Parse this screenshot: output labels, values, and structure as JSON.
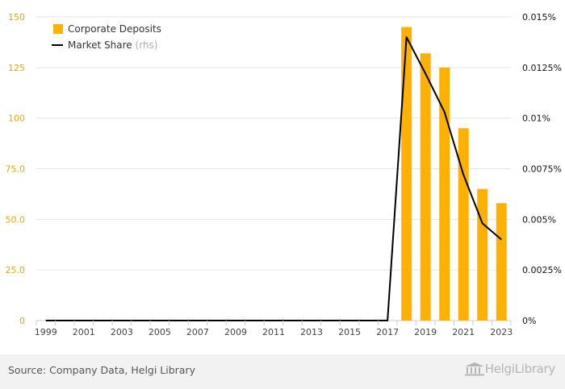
{
  "chart_data": {
    "type": "bar+line",
    "categories": [
      "1999",
      "2000",
      "2001",
      "2002",
      "2003",
      "2004",
      "2005",
      "2006",
      "2007",
      "2008",
      "2009",
      "2010",
      "2011",
      "2012",
      "2013",
      "2014",
      "2015",
      "2016",
      "2017",
      "2018",
      "2019",
      "2020",
      "2021",
      "2022",
      "2023"
    ],
    "x_tick_labels": [
      "1999",
      "2001",
      "2003",
      "2005",
      "2007",
      "2009",
      "2011",
      "2013",
      "2015",
      "2017",
      "2019",
      "2021",
      "2023"
    ],
    "series": [
      {
        "name": "Corporate Deposits",
        "type": "bar",
        "axis": "left",
        "color": "#ffb000",
        "values": [
          0,
          0,
          0,
          0,
          0,
          0,
          0,
          0,
          0,
          0,
          0,
          0,
          0,
          0,
          0,
          0,
          0,
          0,
          0,
          145,
          132,
          125,
          95,
          65,
          58
        ]
      },
      {
        "name": "Market Share",
        "legend_suffix": "(rhs)",
        "type": "line",
        "axis": "right",
        "color": "#000000",
        "values": [
          0,
          0,
          0,
          0,
          0,
          0,
          0,
          0,
          0,
          0,
          0,
          0,
          0,
          0,
          0,
          0,
          0,
          0,
          0,
          0.014,
          0.0122,
          0.0103,
          0.0072,
          0.0048,
          0.004
        ]
      }
    ],
    "y_left": {
      "ticks": [
        0,
        25,
        50,
        75,
        100,
        125,
        150
      ],
      "tick_labels": [
        "0",
        "25.0",
        "50.0",
        "75.0",
        "100",
        "125",
        "150"
      ],
      "range": [
        0,
        150
      ],
      "color": "#e6a800"
    },
    "y_right": {
      "ticks": [
        0,
        0.0025,
        0.005,
        0.0075,
        0.01,
        0.0125,
        0.015
      ],
      "tick_labels": [
        "0%",
        "0.0025%",
        "0.005%",
        "0.0075%",
        "0.01%",
        "0.0125%",
        "0.015%"
      ],
      "range": [
        0,
        0.015
      ]
    },
    "grid": true,
    "legend_position": "top-left"
  },
  "footer": {
    "source": "Source: Company Data, Helgi Library",
    "logo_text": "HelgiLibrary",
    "logo_part1": "Helgi",
    "logo_part2": "Library"
  }
}
